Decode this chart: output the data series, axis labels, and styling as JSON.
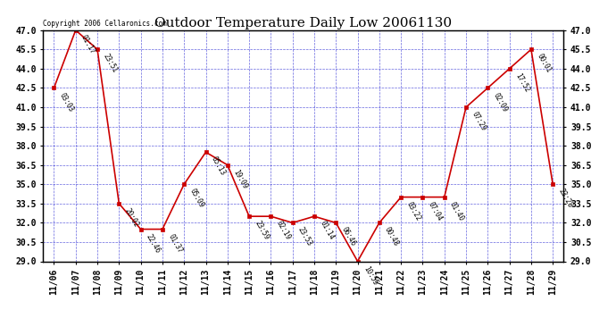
{
  "title": "Outdoor Temperature Daily Low 20061130",
  "copyright": "Copyright 2006 Cellaronics.com",
  "x_labels": [
    "11/06",
    "11/07",
    "11/08",
    "11/09",
    "11/10",
    "11/11",
    "11/12",
    "11/13",
    "11/14",
    "11/15",
    "11/16",
    "11/17",
    "11/18",
    "11/19",
    "11/20",
    "11/21",
    "11/22",
    "11/23",
    "11/24",
    "11/25",
    "11/26",
    "11/27",
    "11/28",
    "11/29"
  ],
  "y_values": [
    42.5,
    47.0,
    45.5,
    33.5,
    31.5,
    31.5,
    35.0,
    37.5,
    36.5,
    32.5,
    32.5,
    32.0,
    32.5,
    32.0,
    29.0,
    32.0,
    34.0,
    34.0,
    34.0,
    41.0,
    42.5,
    44.0,
    45.5,
    35.0
  ],
  "time_labels": [
    "03:03",
    "01:17",
    "23:51",
    "20:02",
    "22:46",
    "01:37",
    "05:09",
    "05:13",
    "19:09",
    "23:59",
    "02:19",
    "23:53",
    "01:14",
    "06:46",
    "10:55",
    "00:48",
    "03:22",
    "07:04",
    "01:40",
    "07:29",
    "02:09",
    "17:52",
    "00:01",
    "23:28"
  ],
  "ylim": [
    29.0,
    47.0
  ],
  "yticks": [
    29.0,
    30.5,
    32.0,
    33.5,
    35.0,
    36.5,
    38.0,
    39.5,
    41.0,
    42.5,
    44.0,
    45.5,
    47.0
  ],
  "line_color": "#cc0000",
  "marker_color": "#cc0000",
  "bg_color": "#ffffff",
  "grid_color": "#0000cc",
  "title_fontsize": 11,
  "tick_fontsize": 7,
  "annot_fontsize": 5.5,
  "copyright_fontsize": 5.5
}
